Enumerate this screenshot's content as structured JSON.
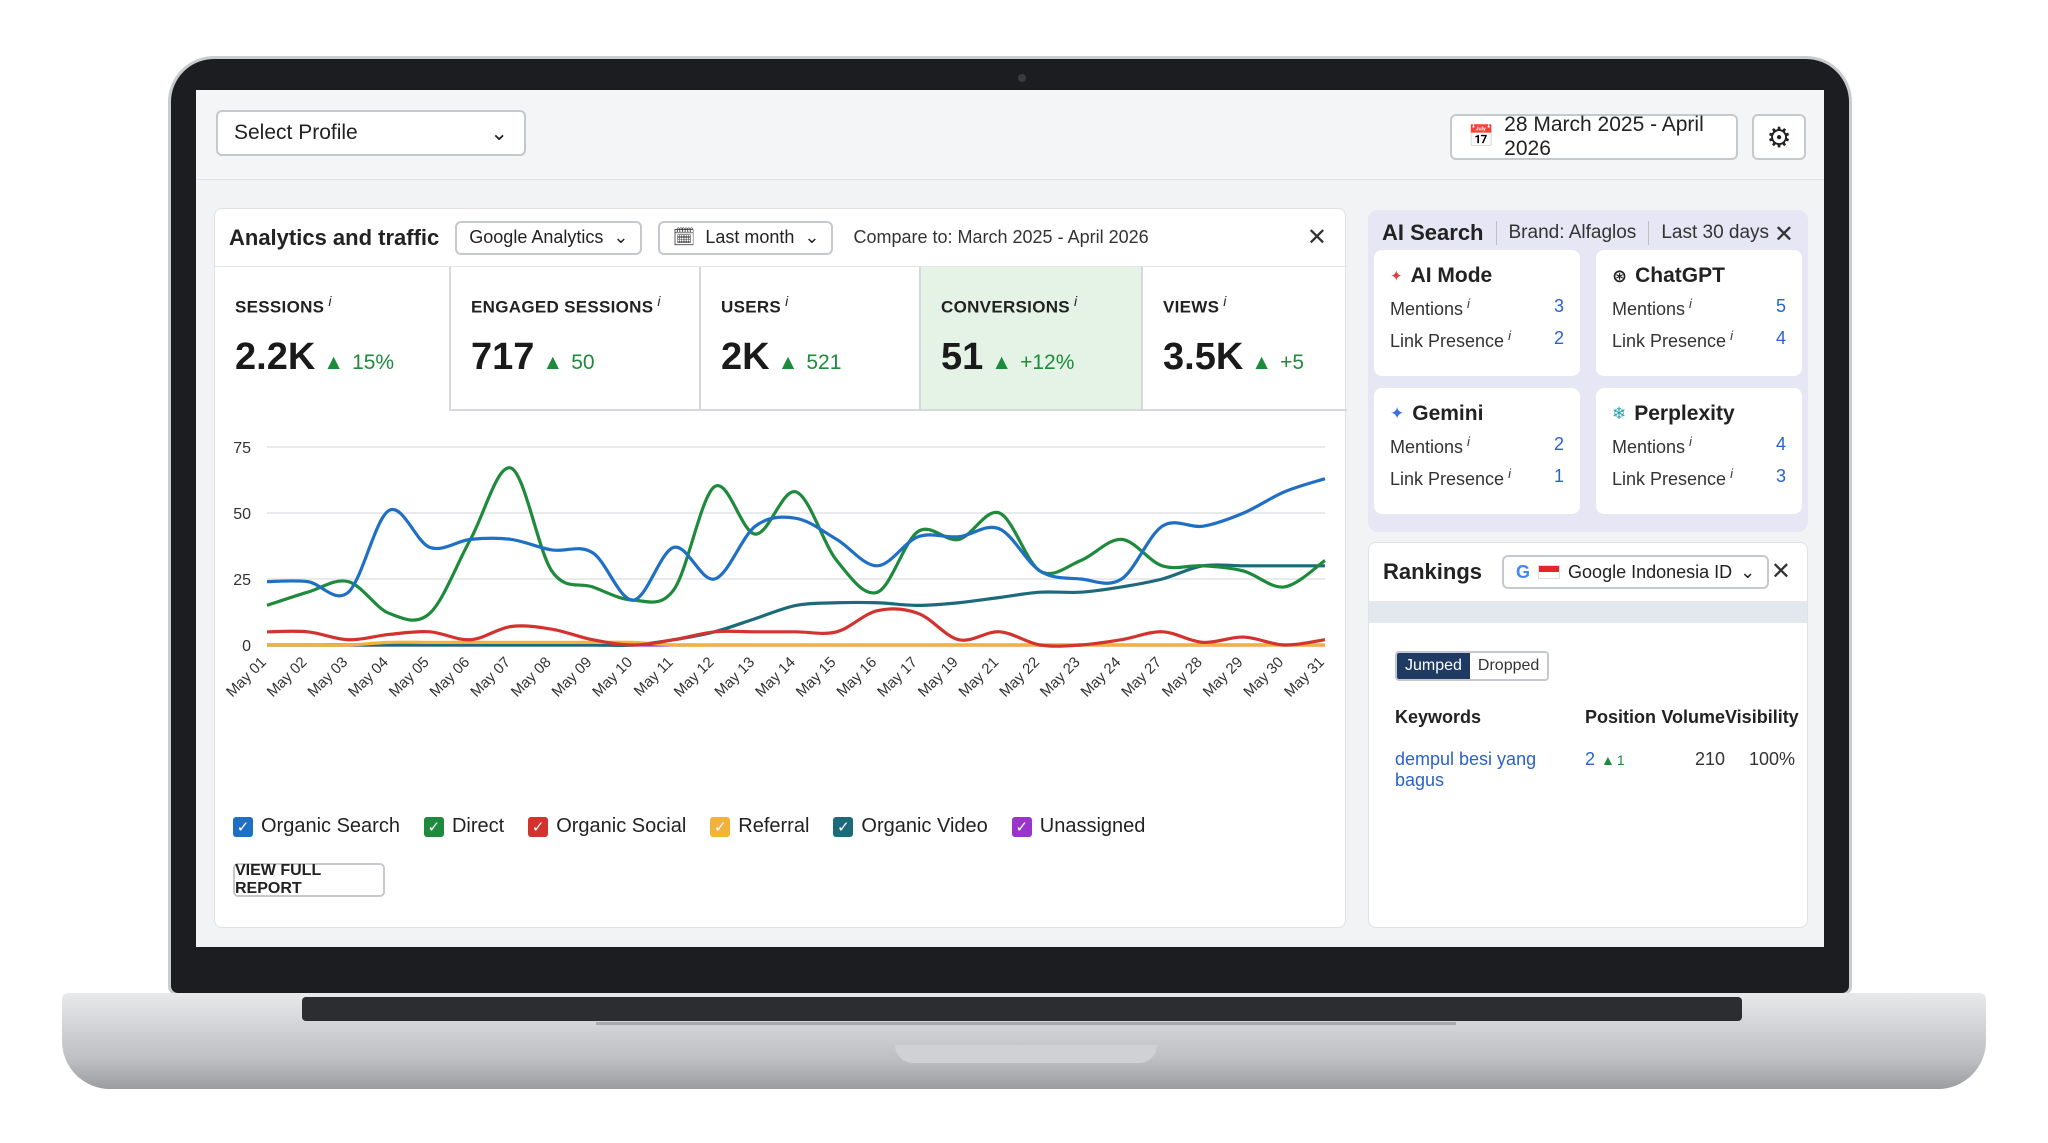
{
  "topbar": {
    "profile_select": "Select Profile",
    "date_range": "28 March 2025 - April 2026"
  },
  "analytics": {
    "title": "Analytics and traffic",
    "source_select": "Google Analytics",
    "period_select": "Last month",
    "compare": "Compare to: March 2025 - April 2026",
    "metrics": [
      {
        "label": "SESSIONS",
        "value": "2.2K",
        "change": "15%"
      },
      {
        "label": "ENGAGED SESSIONS",
        "value": "717",
        "change": "50"
      },
      {
        "label": "USERS",
        "value": "2K",
        "change": "521"
      },
      {
        "label": "CONVERSIONS",
        "value": "51",
        "change": "+12%"
      },
      {
        "label": "VIEWS",
        "value": "3.5K",
        "change": "+5"
      }
    ],
    "view_full_report": "VIEW FULL REPORT"
  },
  "chart_data": {
    "type": "line",
    "x": [
      "May 01",
      "May 02",
      "May 03",
      "May 04",
      "May 05",
      "May 06",
      "May 07",
      "May 08",
      "May 09",
      "May 10",
      "May 11",
      "May 12",
      "May 13",
      "May 14",
      "May 15",
      "May 16",
      "May 17",
      "May 19",
      "May 21",
      "May 22",
      "May 23",
      "May 24",
      "May 27",
      "May 28",
      "May 29",
      "May 30",
      "May 31"
    ],
    "ylim": [
      0,
      75
    ],
    "yticks": [
      0,
      25,
      50,
      75
    ],
    "grid": true,
    "legend_position": "bottom",
    "series": [
      {
        "name": "Organic Search",
        "color": "#1f6fc4",
        "values": [
          24,
          24,
          20,
          51,
          37,
          40,
          40,
          36,
          35,
          17,
          37,
          25,
          45,
          48,
          40,
          30,
          41,
          41,
          44,
          28,
          25,
          25,
          45,
          45,
          50,
          58,
          63
        ]
      },
      {
        "name": "Direct",
        "color": "#1e8a3c",
        "values": [
          15,
          20,
          24,
          12,
          12,
          40,
          67,
          28,
          22,
          17,
          21,
          60,
          42,
          58,
          32,
          20,
          43,
          40,
          50,
          28,
          32,
          40,
          30,
          30,
          28,
          22,
          32
        ]
      },
      {
        "name": "Organic Social",
        "color": "#d2332f",
        "values": [
          5,
          5,
          2,
          4,
          5,
          2,
          7,
          6,
          2,
          0,
          2,
          5,
          5,
          5,
          5,
          13,
          12,
          2,
          5,
          0,
          0,
          2,
          5,
          1,
          3,
          0,
          2
        ]
      },
      {
        "name": "Referral",
        "color": "#f2b33d",
        "values": [
          0,
          0,
          0,
          1,
          1,
          1,
          1,
          1,
          1,
          1,
          0,
          0,
          0,
          0,
          0,
          0,
          0,
          0,
          0,
          0,
          0,
          0,
          0,
          0,
          0,
          0,
          0
        ]
      },
      {
        "name": "Organic Video",
        "color": "#1d6a7a",
        "values": [
          0,
          0,
          0,
          0,
          0,
          0,
          0,
          0,
          0,
          0,
          2,
          5,
          10,
          15,
          16,
          16,
          15,
          16,
          18,
          20,
          20,
          22,
          25,
          30,
          30,
          30,
          30
        ]
      },
      {
        "name": "Unassigned",
        "color": "#9a35c9",
        "values": [
          0,
          0,
          0,
          0,
          0,
          0,
          0,
          0,
          0,
          0,
          0,
          0,
          0,
          0,
          0,
          0,
          0,
          0,
          0,
          0,
          0,
          0,
          0,
          0,
          0,
          0,
          0
        ]
      }
    ]
  },
  "ai_search": {
    "title": "AI Search",
    "brand": "Brand: Alfaglos",
    "period": "Last 30 days",
    "mentions_label": "Mentions",
    "link_presence_label": "Link Presence",
    "cards": [
      {
        "name": "AI Mode",
        "icon": "sparkle-search-icon",
        "mentions": "3",
        "link_presence": "2"
      },
      {
        "name": "ChatGPT",
        "icon": "openai-knot-icon",
        "mentions": "5",
        "link_presence": "4"
      },
      {
        "name": "Gemini",
        "icon": "gemini-star-icon",
        "mentions": "2",
        "link_presence": "1"
      },
      {
        "name": "Perplexity",
        "icon": "perplexity-icon",
        "mentions": "4",
        "link_presence": "3"
      }
    ]
  },
  "rankings": {
    "title": "Rankings",
    "engine_select": "Google Indonesia ID",
    "toggle": {
      "jumped": "Jumped",
      "dropped": "Dropped"
    },
    "columns": [
      "Keywords",
      "Position",
      "Volume",
      "Visibility"
    ],
    "rows": [
      {
        "keyword": "dempul besi yang bagus",
        "position": "2",
        "position_change": "1",
        "volume": "210",
        "visibility": "100%"
      }
    ]
  }
}
